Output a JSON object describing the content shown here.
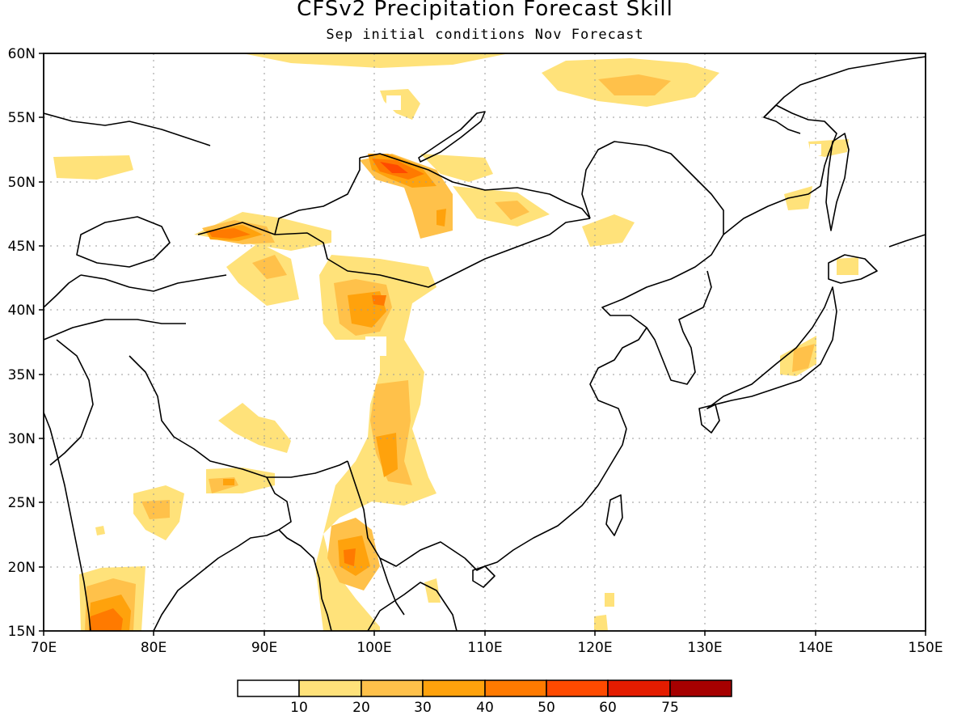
{
  "figure": {
    "title": "CFSv2 Precipitation Forecast Skill",
    "subtitle": "Sep initial conditions  Nov Forecast"
  },
  "map": {
    "lon_range": [
      70,
      150
    ],
    "lat_range": [
      15,
      60
    ],
    "grid": "dotted",
    "x_ticks": [
      "70E",
      "80E",
      "90E",
      "100E",
      "110E",
      "120E",
      "130E",
      "140E",
      "150E"
    ],
    "y_ticks": [
      "15N",
      "20N",
      "25N",
      "30N",
      "35N",
      "40N",
      "45N",
      "50N",
      "55N",
      "60N"
    ]
  },
  "legend": {
    "colors": [
      "#ffffff",
      "#ffe27a",
      "#ffc14a",
      "#ffa20c",
      "#ff7a00",
      "#ff4a00",
      "#e41c00",
      "#a60000"
    ],
    "labels": [
      "10",
      "20",
      "30",
      "40",
      "50",
      "60",
      "75"
    ]
  }
}
